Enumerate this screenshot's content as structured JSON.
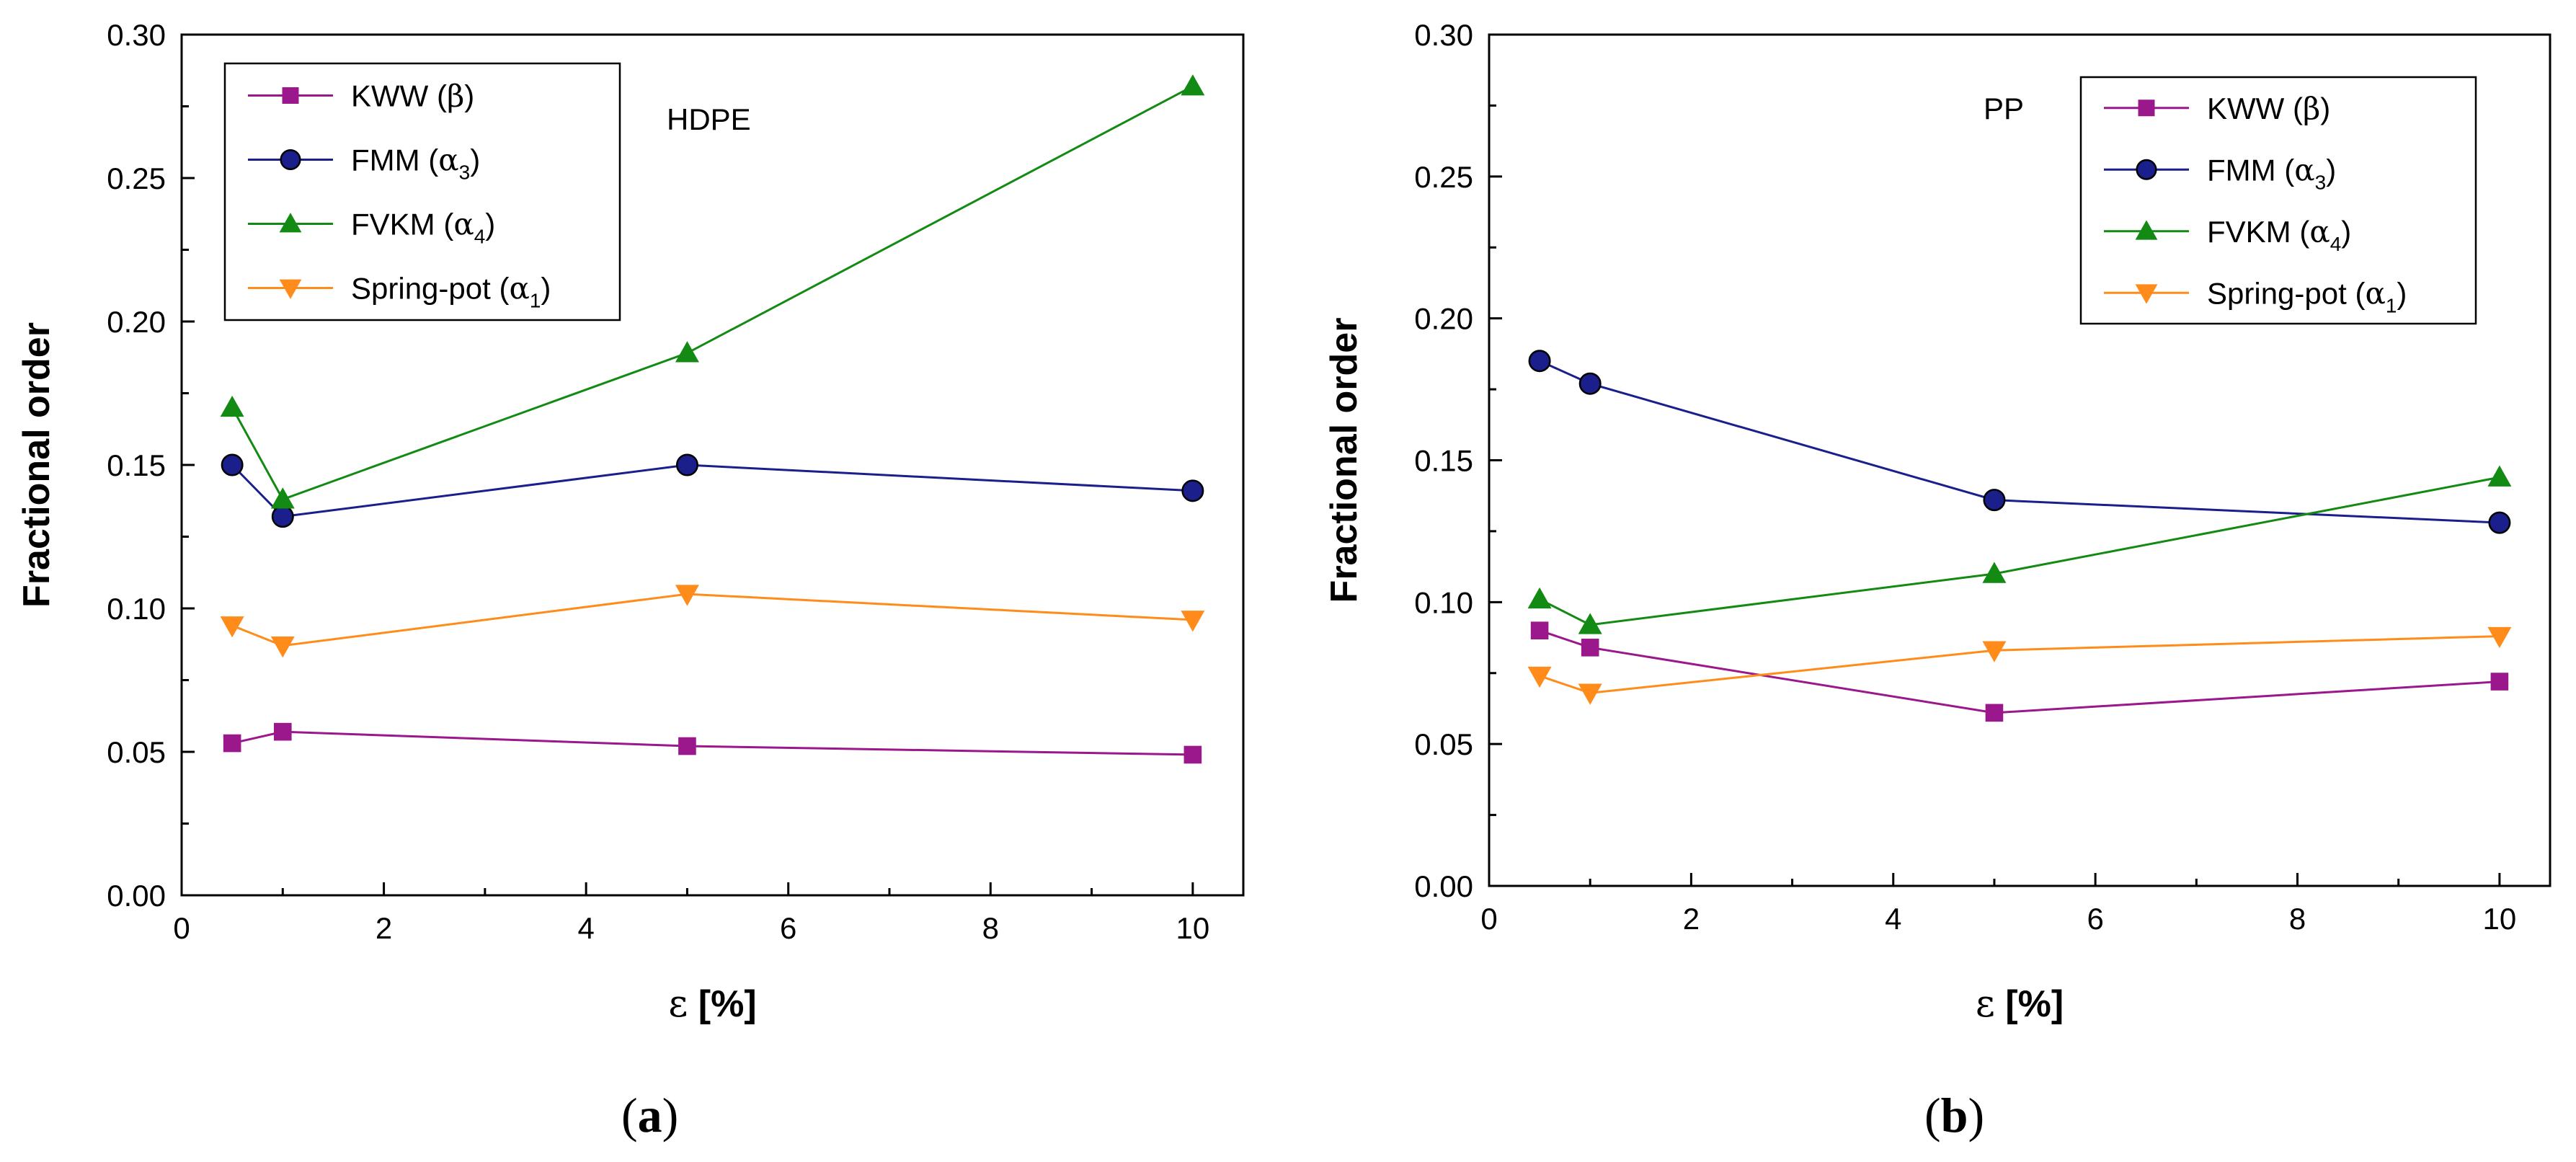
{
  "chart_data": [
    {
      "type": "line",
      "panel_label": "a",
      "material": "HDPE",
      "xlabel_symbol": "ε",
      "xlabel_unit": "[%]",
      "ylabel": "Fractional order",
      "xlim": [
        0,
        10.5
      ],
      "ylim": [
        0,
        0.3
      ],
      "xticks": [
        0,
        2,
        4,
        6,
        8,
        10
      ],
      "yticks": [
        0.0,
        0.05,
        0.1,
        0.15,
        0.2,
        0.25,
        0.3
      ],
      "x": [
        0.5,
        1,
        5,
        10
      ],
      "legend_position": "top-left",
      "series": [
        {
          "name": "KWW",
          "param": "β",
          "sub": "",
          "marker": "square",
          "color": "#9b178c",
          "values": [
            0.053,
            0.057,
            0.052,
            0.049
          ]
        },
        {
          "name": "FMM",
          "param": "α",
          "sub": "3",
          "marker": "circle",
          "color": "#1a1f8c",
          "values": [
            0.15,
            0.132,
            0.15,
            0.141
          ]
        },
        {
          "name": "FVKM",
          "param": "α",
          "sub": "4",
          "marker": "triangle-up",
          "color": "#138a13",
          "values": [
            0.17,
            0.138,
            0.189,
            0.282
          ]
        },
        {
          "name": "Spring-pot",
          "param": "α",
          "sub": "1",
          "marker": "triangle-down",
          "color": "#ff8c1a",
          "values": [
            0.094,
            0.087,
            0.105,
            0.096
          ]
        }
      ]
    },
    {
      "type": "line",
      "panel_label": "b",
      "material": "PP",
      "xlabel_symbol": "ε",
      "xlabel_unit": "[%]",
      "ylabel": "Fractional order",
      "xlim": [
        0,
        10.5
      ],
      "ylim": [
        0,
        0.3
      ],
      "xticks": [
        0,
        2,
        4,
        6,
        8,
        10
      ],
      "yticks": [
        0.0,
        0.05,
        0.1,
        0.15,
        0.2,
        0.25,
        0.3
      ],
      "x": [
        0.5,
        1,
        5,
        10
      ],
      "legend_position": "top-right",
      "series": [
        {
          "name": "KWW",
          "param": "β",
          "sub": "",
          "marker": "square",
          "color": "#9b178c",
          "values": [
            0.09,
            0.084,
            0.061,
            0.072
          ]
        },
        {
          "name": "FMM",
          "param": "α",
          "sub": "3",
          "marker": "circle",
          "color": "#1a1f8c",
          "values": [
            0.185,
            0.177,
            0.136,
            0.128
          ]
        },
        {
          "name": "FVKM",
          "param": "α",
          "sub": "4",
          "marker": "triangle-up",
          "color": "#138a13",
          "values": [
            0.101,
            0.092,
            0.11,
            0.144
          ]
        },
        {
          "name": "Spring-pot",
          "param": "α",
          "sub": "1",
          "marker": "triangle-down",
          "color": "#ff8c1a",
          "values": [
            0.074,
            0.068,
            0.083,
            0.088
          ]
        }
      ]
    }
  ]
}
